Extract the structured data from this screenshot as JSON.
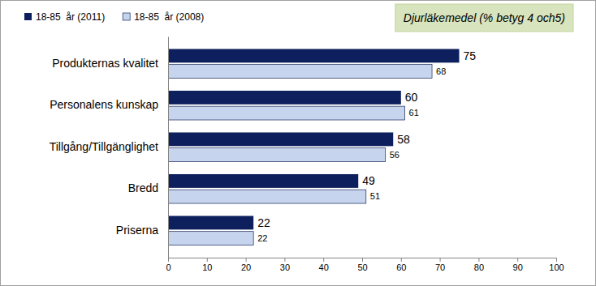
{
  "chart_data": {
    "type": "bar",
    "orientation": "horizontal",
    "title": "Djurläkemedel (% betyg 4 och5)",
    "categories": [
      "Produkternas kvalitet",
      "Personalens kunskap",
      "Tillgång/Tillgänglighet",
      "Bredd",
      "Priserna"
    ],
    "series": [
      {
        "name": "18-85  år (2011)",
        "color": "#0d1f5c",
        "values": [
          75,
          60,
          58,
          49,
          22
        ]
      },
      {
        "name": "18-85  år (2008)",
        "color": "#c6d4ee",
        "values": [
          68,
          61,
          56,
          51,
          22
        ]
      }
    ],
    "xlim": [
      0,
      100
    ],
    "xticks": [
      0,
      10,
      20,
      30,
      40,
      50,
      60,
      70,
      80,
      90,
      100
    ],
    "grid": false,
    "legend": "top-left",
    "data_labels": true
  }
}
